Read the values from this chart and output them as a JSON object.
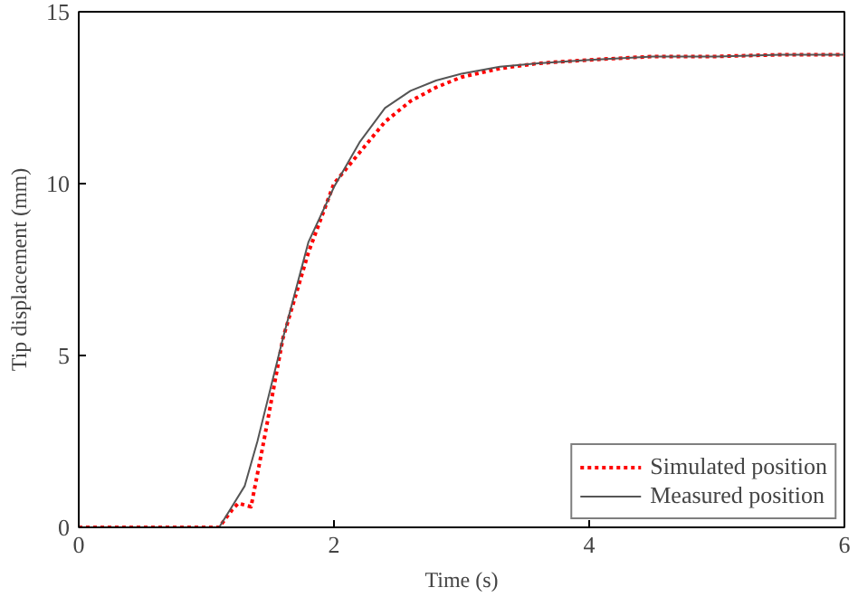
{
  "chart_data": {
    "type": "line",
    "xlabel": "Time (s)",
    "ylabel": "Tip displacement (mm)",
    "xlim": [
      0,
      6
    ],
    "ylim": [
      0,
      15
    ],
    "xticks": [
      0,
      2,
      4,
      6
    ],
    "yticks": [
      0,
      5,
      10,
      15
    ],
    "grid": false,
    "legend": "bottom right",
    "series": [
      {
        "name": "Simulated position",
        "color": "#ff0000",
        "line_style": "dotted",
        "x": [
          0,
          0.5,
          1.1,
          1.2,
          1.25,
          1.35,
          1.45,
          1.6,
          1.8,
          2.0,
          2.2,
          2.4,
          2.6,
          2.8,
          3.0,
          3.3,
          3.6,
          4.0,
          4.5,
          5.0,
          5.5,
          6.0
        ],
        "values": [
          0,
          0,
          0,
          0.5,
          0.7,
          0.6,
          2.5,
          5.5,
          8.0,
          10.0,
          10.9,
          11.8,
          12.4,
          12.8,
          13.1,
          13.35,
          13.5,
          13.6,
          13.7,
          13.7,
          13.75,
          13.75
        ]
      },
      {
        "name": "Measured position",
        "color": "#555555",
        "line_style": "solid",
        "x": [
          0,
          0.5,
          1.1,
          1.2,
          1.3,
          1.4,
          1.6,
          1.8,
          2.0,
          2.2,
          2.4,
          2.6,
          2.8,
          3.0,
          3.3,
          3.6,
          4.0,
          4.5,
          5.0,
          5.5,
          6.0
        ],
        "values": [
          0,
          0,
          0,
          0.6,
          1.2,
          2.5,
          5.5,
          8.3,
          9.9,
          11.2,
          12.2,
          12.7,
          13.0,
          13.2,
          13.4,
          13.5,
          13.6,
          13.7,
          13.7,
          13.75,
          13.75
        ]
      }
    ]
  }
}
